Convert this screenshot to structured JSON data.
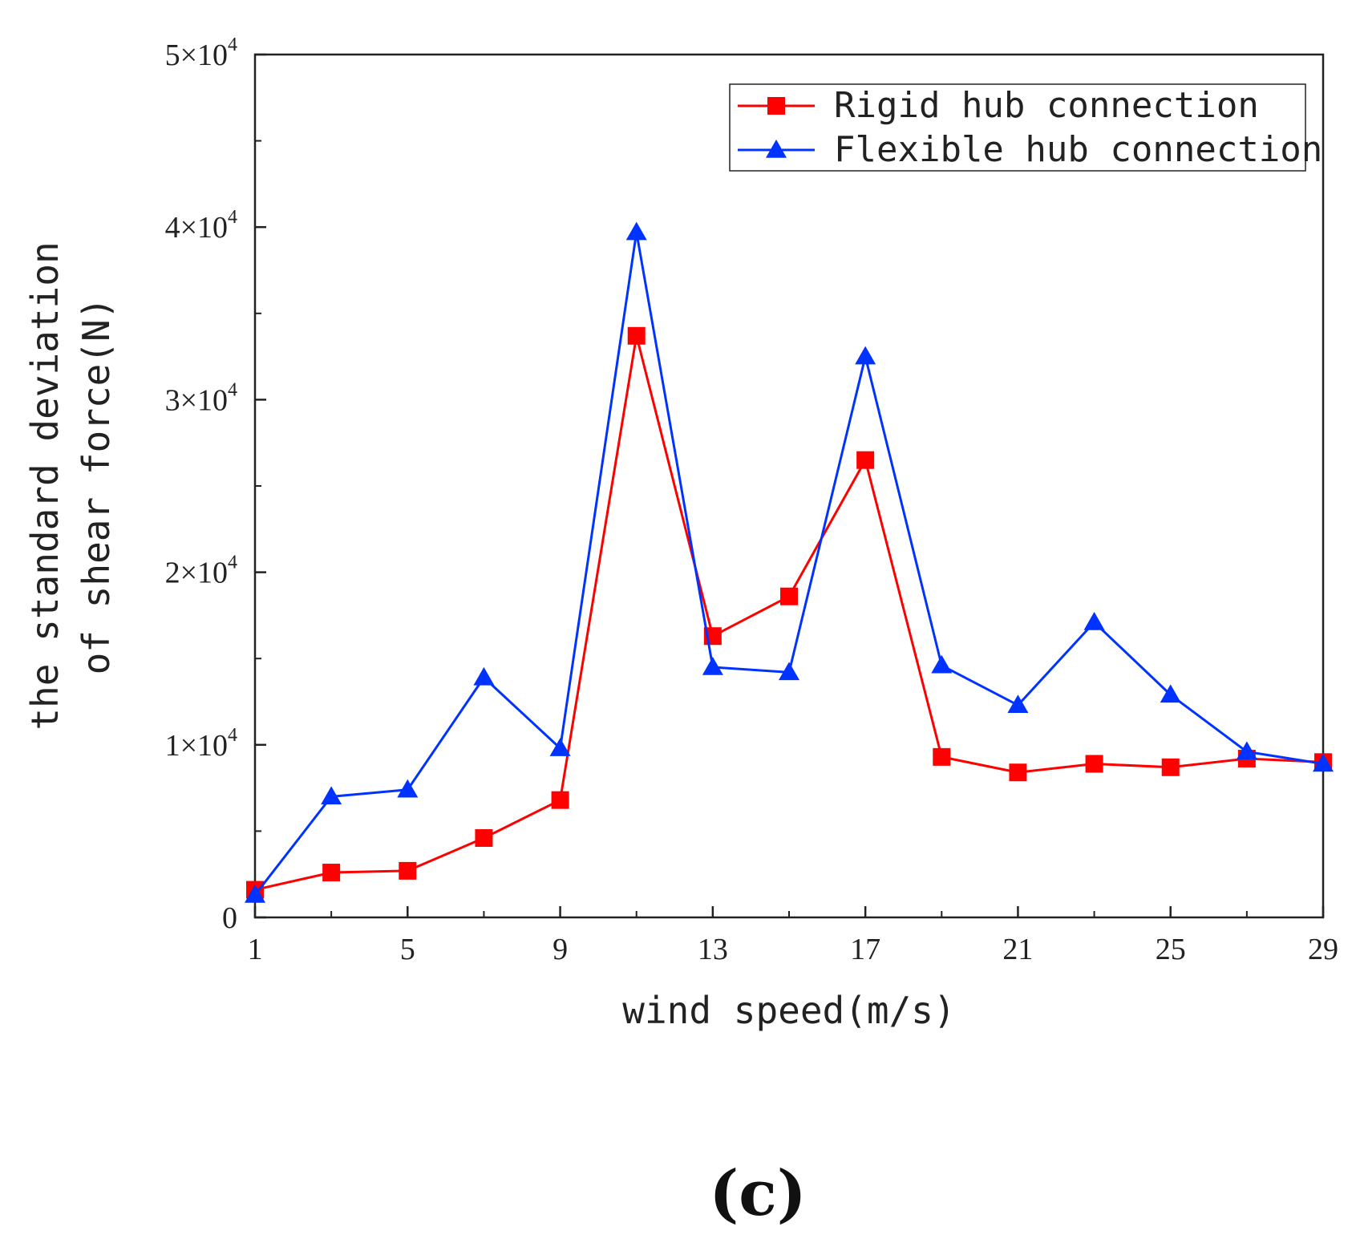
{
  "chart_data": {
    "type": "line",
    "title": "",
    "xlabel": "wind speed(m/s)",
    "ylabel_line1": "the standard deviation",
    "ylabel_line2": "of shear force(N)",
    "panel_label": "(c)",
    "xlim": [
      1,
      29
    ],
    "ylim": [
      0,
      50000
    ],
    "x_ticks": [
      1,
      5,
      9,
      13,
      17,
      21,
      25,
      29
    ],
    "x_tick_labels": [
      "1",
      "5",
      "9",
      "13",
      "17",
      "21",
      "25",
      "29"
    ],
    "y_ticks": [
      0,
      10000,
      20000,
      30000,
      40000,
      50000
    ],
    "y_tick_labels": [
      "0",
      "1×10",
      "2×10",
      "3×10",
      "4×10",
      "5×10"
    ],
    "y_tick_exponent": "4",
    "grid": false,
    "legend_position": "top-right",
    "x": [
      1,
      3,
      5,
      7,
      9,
      11,
      13,
      15,
      17,
      19,
      21,
      23,
      25,
      27,
      29
    ],
    "series": [
      {
        "name": "Rigid hub connection",
        "color": "#ff0000",
        "marker": "square",
        "values": [
          1600,
          2600,
          2700,
          4600,
          6800,
          33700,
          16300,
          18600,
          26500,
          9300,
          8400,
          8900,
          8700,
          9200,
          9000
        ]
      },
      {
        "name": "Flexible hub connection",
        "color": "#0033ff",
        "marker": "triangle",
        "values": [
          1300,
          7000,
          7400,
          13900,
          9800,
          39700,
          14500,
          14200,
          32500,
          14600,
          12300,
          17100,
          12900,
          9600,
          8900
        ]
      }
    ]
  }
}
